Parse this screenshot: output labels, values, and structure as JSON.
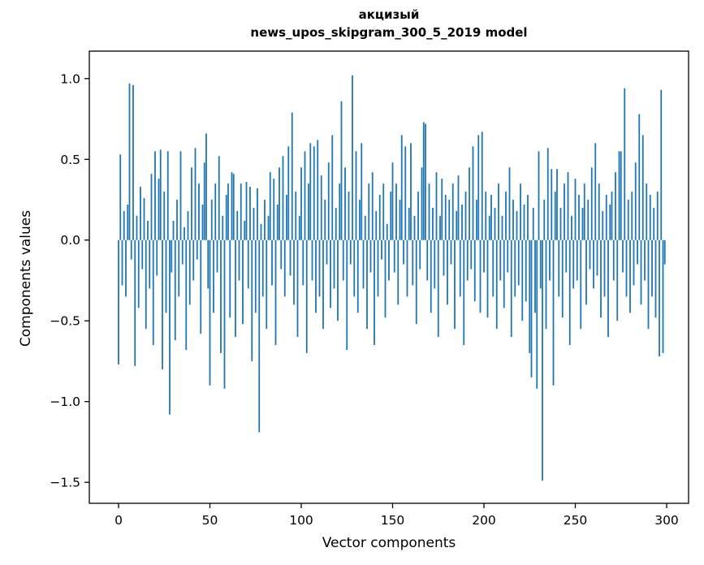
{
  "figure": {
    "title_line1": "акцизый",
    "title_line2": "news_upos_skipgram_300_5_2019 model",
    "xlabel": "Vector components",
    "ylabel": "Components values"
  },
  "chart_data": {
    "type": "bar",
    "title": "акцизый — news_upos_skipgram_300_5_2019 model",
    "xlabel": "Vector components",
    "ylabel": "Components values",
    "legend": "none",
    "grid": false,
    "bar_color": "#1f77b4",
    "xlim": [
      -16,
      312
    ],
    "ylim": [
      -1.63,
      1.17
    ],
    "x_ticks": [
      0,
      50,
      100,
      150,
      200,
      250,
      300
    ],
    "x_tick_labels": [
      "0",
      "50",
      "100",
      "150",
      "200",
      "250",
      "300"
    ],
    "y_ticks": [
      -1.5,
      -1.0,
      -0.5,
      0.0,
      0.5,
      1.0
    ],
    "y_tick_labels": [
      "−1.5",
      "−1.0",
      "−0.5",
      "0.0",
      "0.5",
      "1.0"
    ],
    "values": [
      -0.77,
      0.53,
      -0.28,
      0.18,
      -0.35,
      0.22,
      0.97,
      -0.12,
      0.96,
      -0.78,
      0.15,
      -0.42,
      0.33,
      -0.18,
      0.26,
      -0.55,
      0.12,
      -0.3,
      0.41,
      -0.65,
      0.55,
      -0.22,
      0.38,
      0.56,
      -0.8,
      0.3,
      -0.45,
      0.55,
      -1.08,
      -0.2,
      0.12,
      -0.62,
      0.25,
      -0.35,
      0.55,
      -0.15,
      0.08,
      -0.68,
      0.18,
      -0.4,
      0.45,
      -0.25,
      0.57,
      -0.12,
      0.35,
      -0.58,
      0.22,
      0.48,
      0.66,
      -0.3,
      -0.9,
      0.25,
      -0.45,
      0.35,
      -0.2,
      0.52,
      -0.7,
      0.15,
      -0.92,
      0.28,
      0.35,
      -0.48,
      0.42,
      0.41,
      -0.6,
      0.18,
      -0.25,
      0.35,
      -0.52,
      0.12,
      0.36,
      -0.3,
      0.33,
      -0.75,
      0.2,
      -0.45,
      0.32,
      -1.19,
      0.1,
      -0.35,
      0.25,
      -0.55,
      0.15,
      0.42,
      -0.28,
      0.38,
      -0.65,
      0.22,
      0.45,
      -0.18,
      0.52,
      -0.35,
      0.28,
      0.58,
      -0.22,
      0.79,
      -0.4,
      0.3,
      -0.6,
      0.15,
      0.45,
      -0.28,
      0.55,
      -0.7,
      0.35,
      0.6,
      -0.25,
      0.58,
      -0.45,
      0.62,
      -0.35,
      0.4,
      -0.55,
      0.25,
      -0.15,
      0.48,
      -0.42,
      0.65,
      -0.3,
      0.2,
      -0.5,
      0.35,
      0.86,
      -0.25,
      0.45,
      -0.68,
      0.3,
      -0.15,
      1.02,
      -0.35,
      0.55,
      -0.45,
      0.25,
      0.6,
      -0.3,
      0.15,
      -0.55,
      0.35,
      -0.2,
      0.42,
      -0.65,
      0.18,
      -0.35,
      0.28,
      -0.12,
      0.35,
      -0.48,
      0.1,
      -0.25,
      0.3,
      0.48,
      -0.2,
      0.35,
      -0.4,
      0.25,
      0.65,
      -0.15,
      0.58,
      -0.35,
      0.2,
      0.6,
      -0.28,
      0.15,
      -0.52,
      0.3,
      -0.18,
      0.45,
      0.73,
      0.72,
      -0.25,
      0.35,
      -0.45,
      0.2,
      -0.3,
      0.42,
      -0.6,
      0.15,
      0.38,
      -0.22,
      0.28,
      -0.4,
      0.25,
      -0.15,
      0.35,
      -0.55,
      0.18,
      0.4,
      -0.35,
      0.22,
      -0.65,
      0.3,
      -0.25,
      0.45,
      -0.18,
      0.58,
      -0.38,
      0.25,
      0.65,
      -0.45,
      0.67,
      -0.2,
      0.3,
      -0.48,
      0.15,
      0.28,
      -0.35,
      0.2,
      -0.55,
      0.35,
      -0.25,
      0.15,
      -0.42,
      0.3,
      -0.2,
      0.45,
      -0.6,
      0.25,
      -0.35,
      0.18,
      -0.28,
      0.35,
      -0.5,
      0.22,
      -0.38,
      0.28,
      -0.7,
      -0.85,
      0.2,
      -0.45,
      -0.92,
      0.55,
      -0.3,
      -1.49,
      0.25,
      -0.55,
      0.57,
      -0.25,
      0.44,
      -0.9,
      0.3,
      0.44,
      -0.35,
      0.2,
      -0.48,
      0.35,
      -0.2,
      0.42,
      -0.65,
      0.15,
      -0.3,
      0.38,
      -0.25,
      0.28,
      -0.55,
      0.2,
      0.35,
      -0.4,
      0.25,
      -0.18,
      0.45,
      -0.3,
      0.6,
      -0.22,
      0.35,
      -0.48,
      0.18,
      -0.35,
      0.28,
      -0.6,
      0.22,
      0.3,
      -0.25,
      0.42,
      -0.5,
      0.55,
      0.55,
      -0.2,
      0.94,
      -0.35,
      0.25,
      -0.45,
      0.3,
      -0.28,
      0.48,
      -0.15,
      0.78,
      -0.4,
      0.65,
      -0.25,
      0.35,
      -0.55,
      0.28,
      -0.35,
      0.2,
      -0.48,
      0.3,
      -0.72,
      0.93,
      -0.7,
      -0.15
    ]
  }
}
